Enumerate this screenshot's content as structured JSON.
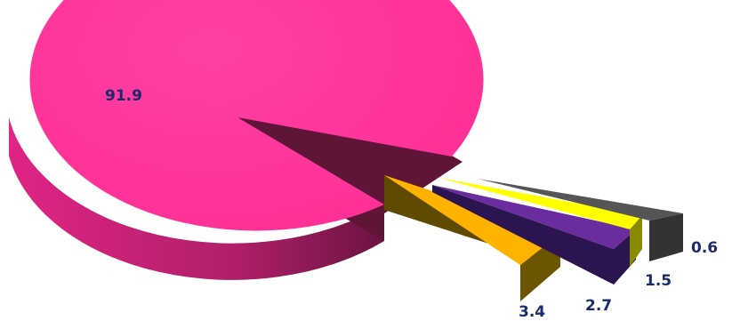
{
  "chart_data": {
    "type": "pie",
    "style": "3d-exploded",
    "title": "",
    "slices": [
      {
        "label": "91.9",
        "value": 91.9,
        "color": "#ff3399"
      },
      {
        "label": "3.4",
        "value": 3.4,
        "color": "#ffb300"
      },
      {
        "label": "2.7",
        "value": 2.7,
        "color": "#6a2c9e"
      },
      {
        "label": "1.5",
        "value": 1.5,
        "color": "#ffff00"
      },
      {
        "label": "0.6",
        "value": 0.6,
        "color": "#444444"
      }
    ],
    "legend": "none",
    "grid": false
  }
}
